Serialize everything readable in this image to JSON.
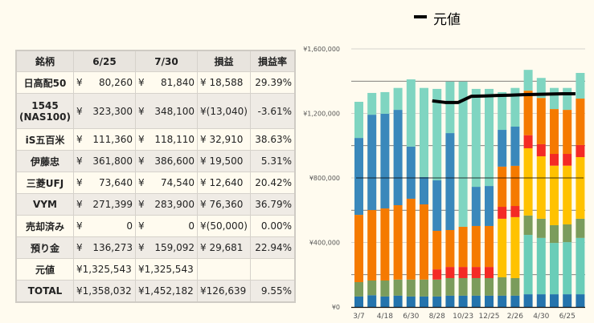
{
  "table": {
    "headers": [
      "銘柄",
      "6/25",
      "7/30",
      "損益",
      "損益率"
    ],
    "rows": [
      {
        "name": "日高配50",
        "c1": "80,260",
        "c2": "81,840",
        "pl": "¥ 18,588",
        "rate": "29.39%"
      },
      {
        "name": "1545 (NAS100)",
        "c1": "323,300",
        "c2": "348,100",
        "pl": "¥(13,040)",
        "rate": "-3.61%"
      },
      {
        "name": "iS五百米",
        "c1": "111,360",
        "c2": "118,110",
        "pl": "¥ 32,910",
        "rate": "38.63%"
      },
      {
        "name": "伊藤忠",
        "c1": "361,800",
        "c2": "386,600",
        "pl": "¥ 19,500",
        "rate": "5.31%"
      },
      {
        "name": "三菱UFJ",
        "c1": "73,640",
        "c2": "74,540",
        "pl": "¥ 12,640",
        "rate": "20.42%"
      },
      {
        "name": "VYM",
        "c1": "271,399",
        "c2": "283,900",
        "pl": "¥ 76,360",
        "rate": "36.79%"
      },
      {
        "name": "売却済み",
        "c1": "0",
        "c2": "0",
        "pl": "¥(50,000)",
        "rate": "0.00%"
      },
      {
        "name": "預り金",
        "c1": "136,273",
        "c2": "159,092",
        "pl": "¥ 29,681",
        "rate": "22.94%"
      }
    ],
    "yen": "¥",
    "motone": {
      "name": "元値",
      "c1": "¥1,325,543",
      "c2": "¥1,325,543"
    },
    "total": {
      "name": "TOTAL",
      "c1": "¥1,358,032",
      "c2": "¥1,452,182",
      "pl": "¥126,639",
      "rate": "9.55%"
    }
  },
  "chart_data": {
    "type": "bar",
    "stacked": true,
    "legend": [
      "元値"
    ],
    "legend_placement": "top",
    "categories": [
      "3/7",
      "",
      "4/18",
      "",
      "6/30",
      "",
      "8/28",
      "",
      "10/23",
      "",
      "12/25",
      "",
      "2/26",
      "",
      "4/30",
      "",
      "6/25",
      ""
    ],
    "yticks": [
      "¥0",
      "¥400,000",
      "¥800,000",
      "¥1,200,000",
      "¥1,600,000"
    ],
    "ylim": [
      0,
      1600000
    ],
    "series": [
      {
        "color": "#2474ad",
        "values": [
          65000,
          73000,
          65000,
          70000,
          65000,
          65000,
          65000,
          70000,
          70000,
          70000,
          70000,
          70000,
          70000,
          79000,
          79000,
          79000,
          79000,
          79000
        ]
      },
      {
        "color": "#6acdb8",
        "values": [
          0,
          0,
          0,
          0,
          0,
          0,
          0,
          0,
          0,
          0,
          0,
          0,
          0,
          368000,
          349000,
          318000,
          323000,
          349000
        ]
      },
      {
        "color": "#7b9c5c",
        "values": [
          89000,
          91000,
          99000,
          100000,
          105000,
          105000,
          105000,
          109000,
          109000,
          109000,
          109000,
          114000,
          109000,
          120000,
          119000,
          110000,
          110000,
          119000
        ]
      },
      {
        "color": "#ffc200",
        "values": [
          0,
          0,
          0,
          0,
          0,
          0,
          0,
          0,
          0,
          0,
          0,
          363000,
          378000,
          417000,
          387000,
          369000,
          364000,
          382000
        ]
      },
      {
        "color": "#f42a25",
        "values": [
          0,
          0,
          0,
          0,
          0,
          0,
          63000,
          69000,
          69000,
          69000,
          69000,
          74000,
          69000,
          81000,
          75000,
          73000,
          73000,
          75000
        ]
      },
      {
        "color": "#f57a00",
        "values": [
          417000,
          437000,
          447000,
          461000,
          501000,
          466000,
          239000,
          229000,
          249000,
          254000,
          254000,
          249000,
          249000,
          276000,
          287000,
          278000,
          273000,
          288000
        ]
      },
      {
        "color": "#3a88bb",
        "values": [
          477000,
          591000,
          587000,
          591000,
          323000,
          169000,
          313000,
          601000,
          0,
          243000,
          248000,
          228000,
          243000,
          0,
          0,
          0,
          0,
          0
        ]
      },
      {
        "color": "#7fd5c1",
        "values": [
          224000,
          135000,
          134000,
          136000,
          417000,
          553000,
          567000,
          319000,
          900000,
          607000,
          602000,
          234000,
          240000,
          129000,
          124000,
          131000,
          136000,
          159000
        ]
      }
    ],
    "line": {
      "name": "元値",
      "color": "#000000",
      "values": [
        null,
        null,
        null,
        null,
        null,
        null,
        1278000,
        1268000,
        1268000,
        1306000,
        1308000,
        1311000,
        1313000,
        1316000,
        1318000,
        1320000,
        1322000,
        1322000
      ]
    },
    "reference_line": {
      "value": 800000,
      "color": "#000000"
    }
  }
}
